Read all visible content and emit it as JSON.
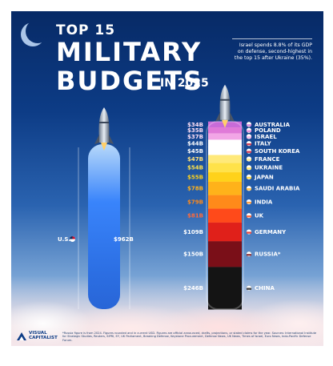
{
  "header": {
    "title_line1": "TOP 15",
    "title_line2": "MILITARY",
    "title_line3": "BUDGETS",
    "title_suffix": "IN 2025"
  },
  "annotation": "Israel spends 8.8% of its GDP on defense, second-highest in the top 15 after Ukraine (35%).",
  "footer": {
    "logo_line1": "VISUAL",
    "logo_line2": "CAPITALIST",
    "footnote": "*Russia figure is from 2024. Figures rounded and in current USD. Figures are official announced, drafts, projections, or stated claims for the year. Sources: International Institute for Strategic Studies, Reuters, SIPRI, EY, UK Parliament, Breaking Defense, Keystone Procurement, Defense News, UK News, Times of Israel, Euro News, Indo-Pacific Defense Forum."
  },
  "chart_data": {
    "type": "bar",
    "unit": "USD (billions)",
    "highlight": {
      "country": "U.S.",
      "label": "$962B",
      "value": 962
    },
    "categories": [
      "Australia",
      "Poland",
      "Israel",
      "Italy",
      "South Korea",
      "France",
      "Ukraine",
      "Japan",
      "Saudi Arabia",
      "India",
      "UK",
      "Germany",
      "Russia*",
      "China"
    ],
    "display_names": [
      "AUSTRALIA",
      "POLAND",
      "ISRAEL",
      "ITALY",
      "SOUTH KOREA",
      "FRANCE",
      "UKRAINE",
      "JAPAN",
      "SAUDI ARABIA",
      "INDIA",
      "UK",
      "GERMANY",
      "RUSSIA*",
      "CHINA"
    ],
    "value_labels": [
      "$34B",
      "$35B",
      "$37B",
      "$44B",
      "$45B",
      "$47B",
      "$54B",
      "$55B",
      "$78B",
      "$79B",
      "$81B",
      "$109B",
      "$150B",
      "$246B"
    ],
    "values": [
      34,
      35,
      37,
      44,
      45,
      47,
      54,
      55,
      78,
      79,
      81,
      109,
      150,
      246
    ],
    "colors": [
      "#c86bd8",
      "#e07ad8",
      "#f2a6e6",
      "#ffffff",
      "#ffffff",
      "#ffe97a",
      "#ffe24a",
      "#ffd21a",
      "#ffb21a",
      "#ff8a1a",
      "#ff4a1a",
      "#e0201a",
      "#7a0f18",
      "#141414"
    ],
    "us_color": "#3a86ff"
  }
}
